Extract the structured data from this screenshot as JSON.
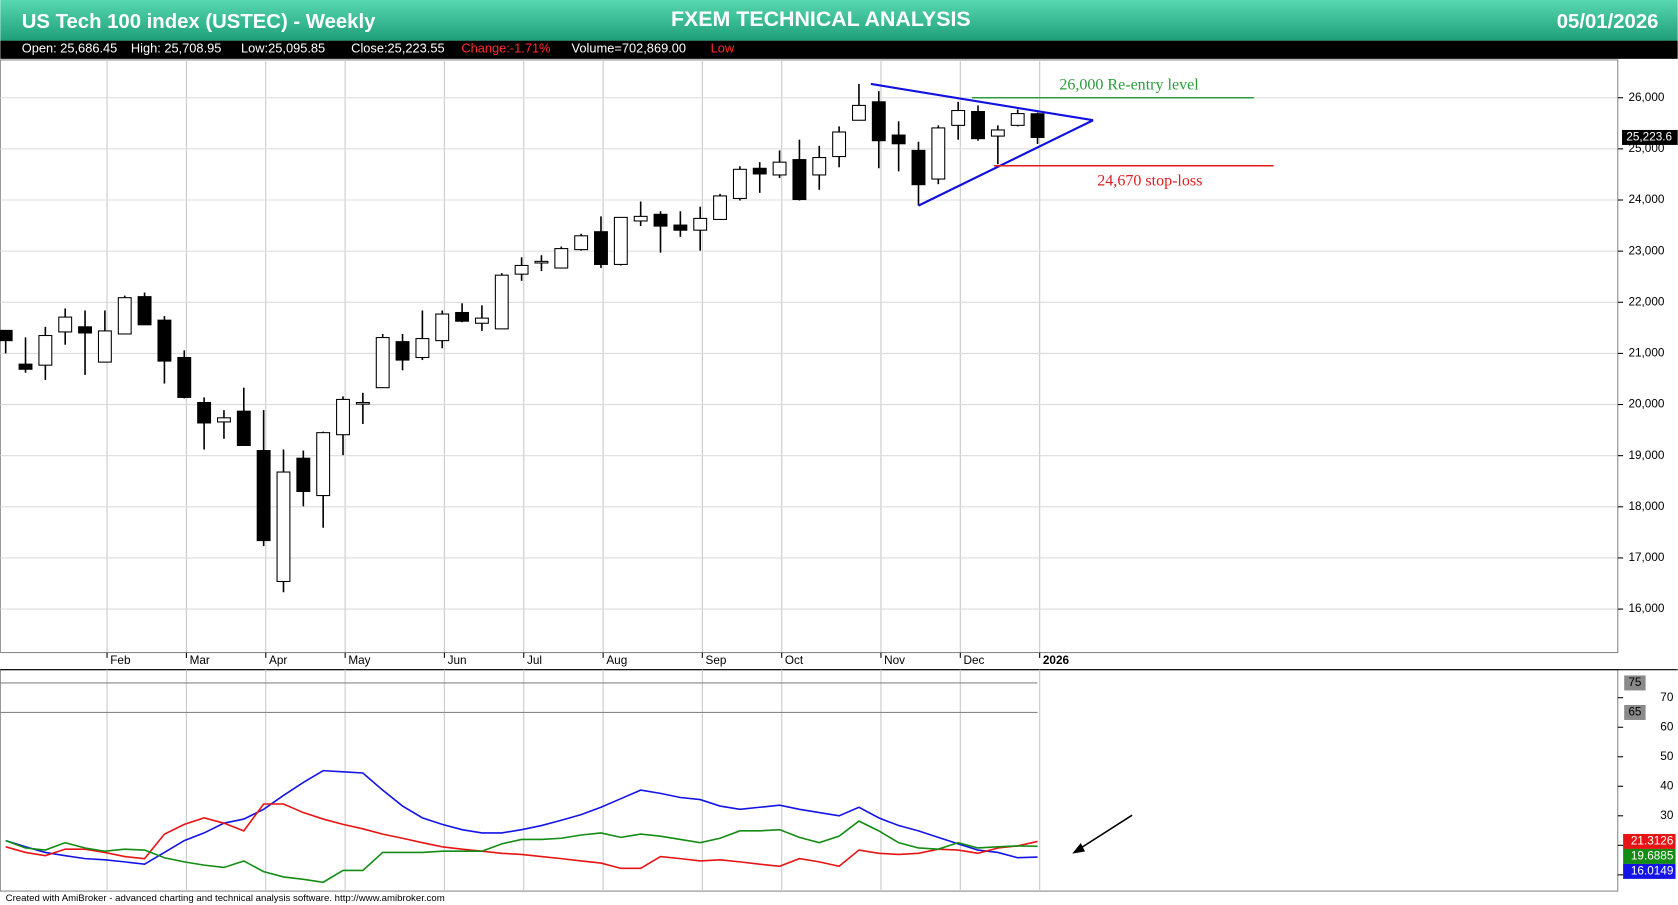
{
  "header": {
    "title": "US Tech 100 index (USTEC) - Weekly",
    "center_title": "FXEM TECHNICAL ANALYSIS",
    "date": "05/01/2026",
    "info": [
      {
        "text": "Open: 25,686.45"
      },
      {
        "text": "High: 25,708.95"
      },
      {
        "text": "Low:25,095.85"
      },
      {
        "text": "Close:25,223.55"
      },
      {
        "text": "Change:-1.71%",
        "color": "#ff2a2a"
      },
      {
        "text": "Volume=702,869.00"
      },
      {
        "text": "Low",
        "color": "#ff2a2a"
      }
    ]
  },
  "chart_data": [
    {
      "type": "candlestick",
      "up_color": "#ffffff",
      "down_color": "#000000",
      "grid": true,
      "categories": [
        null,
        null,
        null,
        null,
        null,
        "Feb",
        null,
        null,
        null,
        "Mar",
        null,
        null,
        null,
        "Apr",
        null,
        null,
        null,
        "May",
        null,
        null,
        null,
        null,
        "Jun",
        null,
        null,
        null,
        "Jul",
        null,
        null,
        null,
        "Aug",
        null,
        null,
        null,
        null,
        "Sep",
        null,
        null,
        null,
        "Oct",
        null,
        null,
        null,
        null,
        "Nov",
        null,
        null,
        null,
        "Dec",
        null,
        null,
        null,
        "2026"
      ],
      "open": [
        21450,
        20790,
        20770,
        21420,
        21520,
        20830,
        21380,
        22110,
        21650,
        20920,
        20040,
        19660,
        19870,
        19100,
        16540,
        18950,
        18220,
        19410,
        20020,
        20330,
        21230,
        20920,
        21250,
        21800,
        21590,
        21480,
        22550,
        22770,
        22670,
        23030,
        23380,
        22740,
        23590,
        23720,
        23510,
        23410,
        23620,
        24030,
        24620,
        24490,
        24790,
        24490,
        24850,
        25560,
        25920,
        25270,
        24970,
        24410,
        25460,
        25730,
        25250,
        25460,
        25686.45
      ],
      "high": [
        21450,
        21314,
        21520,
        21880,
        21840,
        21840,
        22130,
        22190,
        21730,
        21060,
        20140,
        19890,
        20330,
        19890,
        19120,
        19100,
        19470,
        20160,
        20230,
        21380,
        21380,
        21840,
        21840,
        21980,
        21940,
        22570,
        22880,
        22920,
        23090,
        23340,
        23680,
        23660,
        23970,
        23780,
        23780,
        23870,
        24120,
        24660,
        24740,
        24970,
        25180,
        25060,
        25440,
        26270,
        26130,
        25540,
        25140,
        25460,
        25920,
        25850,
        25460,
        25770,
        25708.95
      ],
      "low": [
        21000,
        20623,
        20480,
        21170,
        20580,
        20830,
        21380,
        21560,
        20410,
        20120,
        19120,
        19330,
        19200,
        17230,
        16330,
        18010,
        17590,
        19010,
        19620,
        20330,
        20670,
        20870,
        21100,
        21610,
        21440,
        21480,
        22420,
        22610,
        22670,
        23010,
        22670,
        22720,
        23490,
        22970,
        23280,
        23010,
        23620,
        23990,
        24140,
        24430,
        23990,
        24200,
        24640,
        25560,
        24620,
        24560,
        23890,
        24310,
        25180,
        25160,
        24700,
        25440,
        25095.85
      ],
      "close": [
        21250,
        20690,
        21350,
        21710,
        21400,
        21440,
        22090,
        21560,
        20850,
        20140,
        19640,
        19740,
        19200,
        17340,
        18680,
        18300,
        19450,
        20100,
        20040,
        21310,
        20870,
        21290,
        21770,
        21630,
        21690,
        22530,
        22720,
        22800,
        23050,
        23300,
        22740,
        23660,
        23680,
        23490,
        23410,
        23640,
        24080,
        24600,
        24510,
        24740,
        24010,
        24830,
        25330,
        25850,
        25160,
        25100,
        24300,
        25410,
        25750,
        25200,
        25370,
        25690,
        25223.55
      ],
      "ylim": [
        15150,
        26740
      ],
      "yticks": [
        {
          "value": 16000,
          "label": "16,000"
        },
        {
          "value": 17000,
          "label": "17,000"
        },
        {
          "value": 18000,
          "label": "18,000"
        },
        {
          "value": 19000,
          "label": "19,000"
        },
        {
          "value": 20000,
          "label": "20,000"
        },
        {
          "value": 21000,
          "label": "21,000"
        },
        {
          "value": 22000,
          "label": "22,000"
        },
        {
          "value": 23000,
          "label": "23,000"
        },
        {
          "value": 24000,
          "label": "24,000"
        },
        {
          "value": 25000,
          "label": "25,000"
        },
        {
          "value": 26000,
          "label": "26,000"
        }
      ],
      "last_price": {
        "value": 25223.6,
        "label": "25,223.6"
      },
      "trendlines": [
        {
          "color": "#1010e0",
          "x": [
            43.6,
            54.8
          ],
          "y": [
            26270,
            25560
          ]
        },
        {
          "color": "#1010e0",
          "x": [
            46,
            54.8
          ],
          "y": [
            23890,
            25560
          ]
        }
      ],
      "annotations": [
        {
          "text": "26,000 Re-entry level",
          "value": 26000,
          "x": [
            48.7,
            62.9
          ],
          "color": "#2a9d3a"
        },
        {
          "text": "24,670 stop-loss",
          "value": 24670,
          "x": [
            49.8,
            63.9
          ],
          "color": "#e31b1b"
        }
      ]
    },
    {
      "type": "line",
      "grid": false,
      "ylim": [
        4.5,
        79.5
      ],
      "yticks": [
        10,
        20,
        30,
        40,
        50,
        60,
        70
      ],
      "levels": [
        75,
        65
      ],
      "series": [
        {
          "color": "#1414e6",
          "values": [
            21.6,
            19.5,
            17.6,
            16.5,
            15.5,
            15.1,
            14.4,
            13.6,
            17.6,
            21.6,
            24.2,
            27.5,
            28.9,
            32.2,
            36.9,
            41.3,
            45.3,
            44.9,
            44.5,
            38.7,
            33.3,
            29.3,
            27.1,
            25.3,
            24.2,
            24.2,
            25.3,
            26.7,
            28.5,
            30.4,
            32.9,
            35.8,
            38.7,
            37.6,
            36.2,
            35.5,
            33.3,
            32.2,
            32.9,
            33.6,
            32.2,
            31.1,
            30.0,
            32.9,
            29.3,
            26.7,
            24.9,
            22.7,
            20.5,
            18.4,
            17.6,
            15.8,
            16.0149
          ]
        },
        {
          "color": "#e61414",
          "values": [
            19.5,
            17.6,
            16.5,
            18.7,
            18.7,
            17.6,
            16.2,
            15.5,
            23.8,
            27.1,
            29.3,
            27.5,
            24.9,
            34.0,
            34.0,
            31.1,
            28.9,
            27.1,
            25.6,
            23.8,
            22.4,
            20.9,
            19.5,
            18.7,
            18.0,
            17.3,
            16.9,
            16.2,
            15.5,
            14.7,
            14.0,
            12.2,
            12.2,
            16.2,
            15.5,
            14.7,
            15.1,
            14.4,
            13.6,
            12.9,
            15.5,
            14.4,
            12.9,
            18.4,
            17.3,
            16.9,
            17.3,
            18.7,
            18.4,
            17.3,
            19.1,
            19.8,
            21.3126
          ]
        },
        {
          "color": "#148c14",
          "values": [
            21.6,
            19.1,
            18.4,
            20.9,
            19.1,
            18.0,
            18.7,
            18.4,
            15.8,
            14.4,
            13.3,
            12.5,
            14.7,
            11.1,
            9.3,
            8.5,
            7.5,
            11.5,
            11.5,
            17.6,
            17.6,
            17.6,
            18.0,
            18.0,
            18.0,
            20.5,
            22.0,
            22.0,
            22.4,
            23.5,
            24.2,
            22.7,
            23.8,
            23.1,
            22.0,
            20.9,
            22.4,
            24.9,
            24.9,
            25.3,
            22.7,
            20.9,
            23.1,
            28.2,
            24.9,
            20.9,
            19.1,
            18.7,
            20.9,
            19.1,
            19.5,
            19.8,
            19.6885
          ]
        }
      ]
    }
  ],
  "footer": "Created with AmiBroker - advanced charting and technical analysis software. http://www.amibroker.com"
}
